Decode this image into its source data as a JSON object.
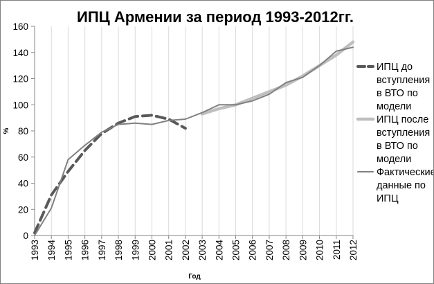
{
  "chart_data": {
    "type": "line",
    "title": "ИПЦ Армении за период 1993-2012гг.",
    "xlabel": "Год",
    "ylabel": "%",
    "ylim": [
      0,
      160
    ],
    "yticks": [
      0,
      20,
      40,
      60,
      80,
      100,
      120,
      140,
      160
    ],
    "grid": "vertical",
    "legend_position": "right",
    "x": [
      "1993",
      "1994",
      "1995",
      "1996",
      "1997",
      "1998",
      "1999",
      "2000",
      "2001",
      "2002",
      "2003",
      "2004",
      "2005",
      "2006",
      "2007",
      "2008",
      "2009",
      "2010",
      "2011",
      "2012"
    ],
    "series": [
      {
        "name": "ИПЦ до вступления в ВТО по модели",
        "legend_lines": [
          "ИПЦ до",
          "вступления",
          "в ВТО по",
          "модели"
        ],
        "color": "#595959",
        "style": "dashed",
        "values": [
          2,
          31,
          49,
          65,
          78,
          86,
          91,
          92,
          89,
          82,
          null,
          null,
          null,
          null,
          null,
          null,
          null,
          null,
          null,
          null
        ]
      },
      {
        "name": "ИПЦ после вступления в ВТО по модели",
        "legend_lines": [
          "ИПЦ после",
          "вступления",
          "в ВТО по",
          "модели"
        ],
        "color": "#bfbfbf",
        "style": "thick",
        "values": [
          null,
          null,
          null,
          null,
          null,
          null,
          null,
          null,
          null,
          null,
          93,
          97,
          100,
          105,
          110,
          115,
          122,
          130,
          138,
          148
        ]
      },
      {
        "name": "Фактические данные по ИПЦ",
        "legend_lines": [
          "Фактические",
          "данные по",
          "ИПЦ"
        ],
        "color": "#808080",
        "style": "solid",
        "values": [
          0,
          21,
          58,
          69,
          79,
          85,
          86,
          85,
          88,
          89,
          94,
          100,
          100,
          103,
          108,
          117,
          121,
          130,
          141,
          144
        ]
      }
    ]
  }
}
